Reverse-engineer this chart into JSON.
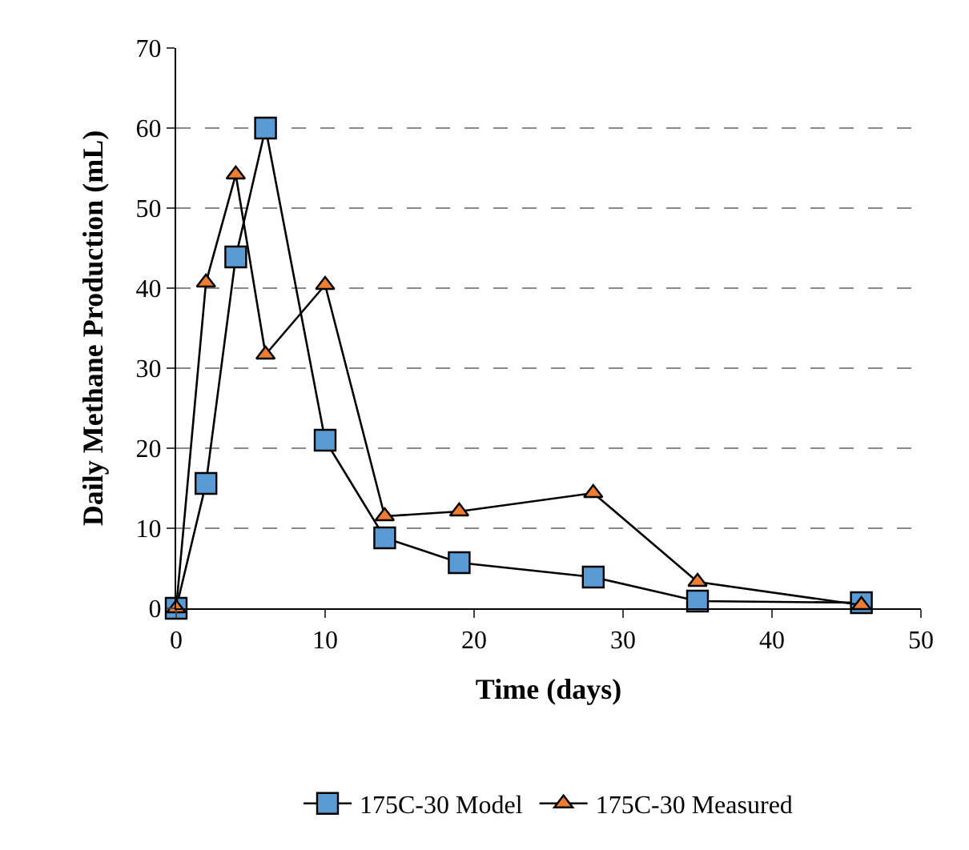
{
  "chart_data": {
    "type": "line",
    "xlabel": "Time (days)",
    "ylabel": "Daily Methane Production (mL)",
    "xlim": [
      0,
      50
    ],
    "xticks": [
      0,
      10,
      20,
      30,
      40,
      50
    ],
    "ylim": [
      0,
      70
    ],
    "yticks": [
      0,
      10,
      20,
      30,
      40,
      50,
      60,
      70
    ],
    "grid": "y",
    "legend": "bottom",
    "series": [
      {
        "name": "175C-30 Model",
        "color": "#5b9bd5",
        "marker": "square",
        "x": [
          0,
          2,
          4,
          6,
          10,
          14,
          19,
          28,
          35,
          46
        ],
        "values": [
          0,
          15.6,
          43.9,
          60,
          21,
          8.8,
          5.7,
          3.9,
          0.9,
          0.7
        ]
      },
      {
        "name": "175C-30 Measured",
        "color": "#ed7d31",
        "marker": "triangle",
        "x": [
          0,
          2,
          4,
          6,
          10,
          14,
          19,
          28,
          35,
          46
        ],
        "values": [
          0,
          40.7,
          54.2,
          31.7,
          40.4,
          11.5,
          12.1,
          14.4,
          3.3,
          0.4
        ]
      }
    ]
  }
}
